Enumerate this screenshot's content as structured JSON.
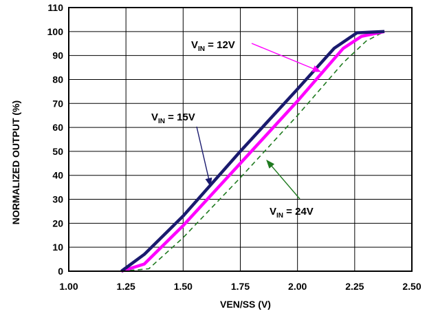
{
  "chart_data": {
    "type": "line",
    "title": "",
    "xlabel": "VEN/SS (V)",
    "ylabel": "NORMALIZED OUTPUT (%)",
    "xlim": [
      1.0,
      2.5
    ],
    "ylim": [
      0,
      110
    ],
    "x_ticks": [
      "1.00",
      "1.25",
      "1.50",
      "1.75",
      "2.00",
      "2.25",
      "2.50"
    ],
    "y_ticks": [
      "0",
      "10",
      "20",
      "30",
      "40",
      "50",
      "60",
      "70",
      "80",
      "90",
      "100",
      "110"
    ],
    "grid": true,
    "series": [
      {
        "name": "VIN = 15V",
        "label_main": "V",
        "label_sub": "IN",
        "label_rest": " = 15V",
        "color": "#1a1a6e",
        "style": "solid-thick",
        "x": [
          1.23,
          1.33,
          1.5,
          1.75,
          2.0,
          2.16,
          2.26,
          2.38
        ],
        "y": [
          0,
          7,
          23,
          50,
          76,
          93,
          99.5,
          100
        ]
      },
      {
        "name": "VIN = 12V",
        "label_main": "V",
        "label_sub": "IN",
        "label_rest": " = 12V",
        "color": "#ff00ff",
        "style": "solid-thick",
        "x": [
          1.23,
          1.33,
          1.5,
          1.75,
          2.0,
          2.2,
          2.28,
          2.38
        ],
        "y": [
          0,
          3,
          19,
          45,
          71,
          93,
          98,
          100
        ]
      },
      {
        "name": "VIN = 24V",
        "label_main": "V",
        "label_sub": "IN",
        "label_rest": " = 24V",
        "color": "#1f7a1f",
        "style": "dashed",
        "x": [
          1.23,
          1.35,
          1.5,
          1.75,
          2.0,
          2.2,
          2.3,
          2.38
        ],
        "y": [
          0,
          1,
          14,
          39,
          65,
          87,
          96,
          100
        ]
      }
    ]
  }
}
